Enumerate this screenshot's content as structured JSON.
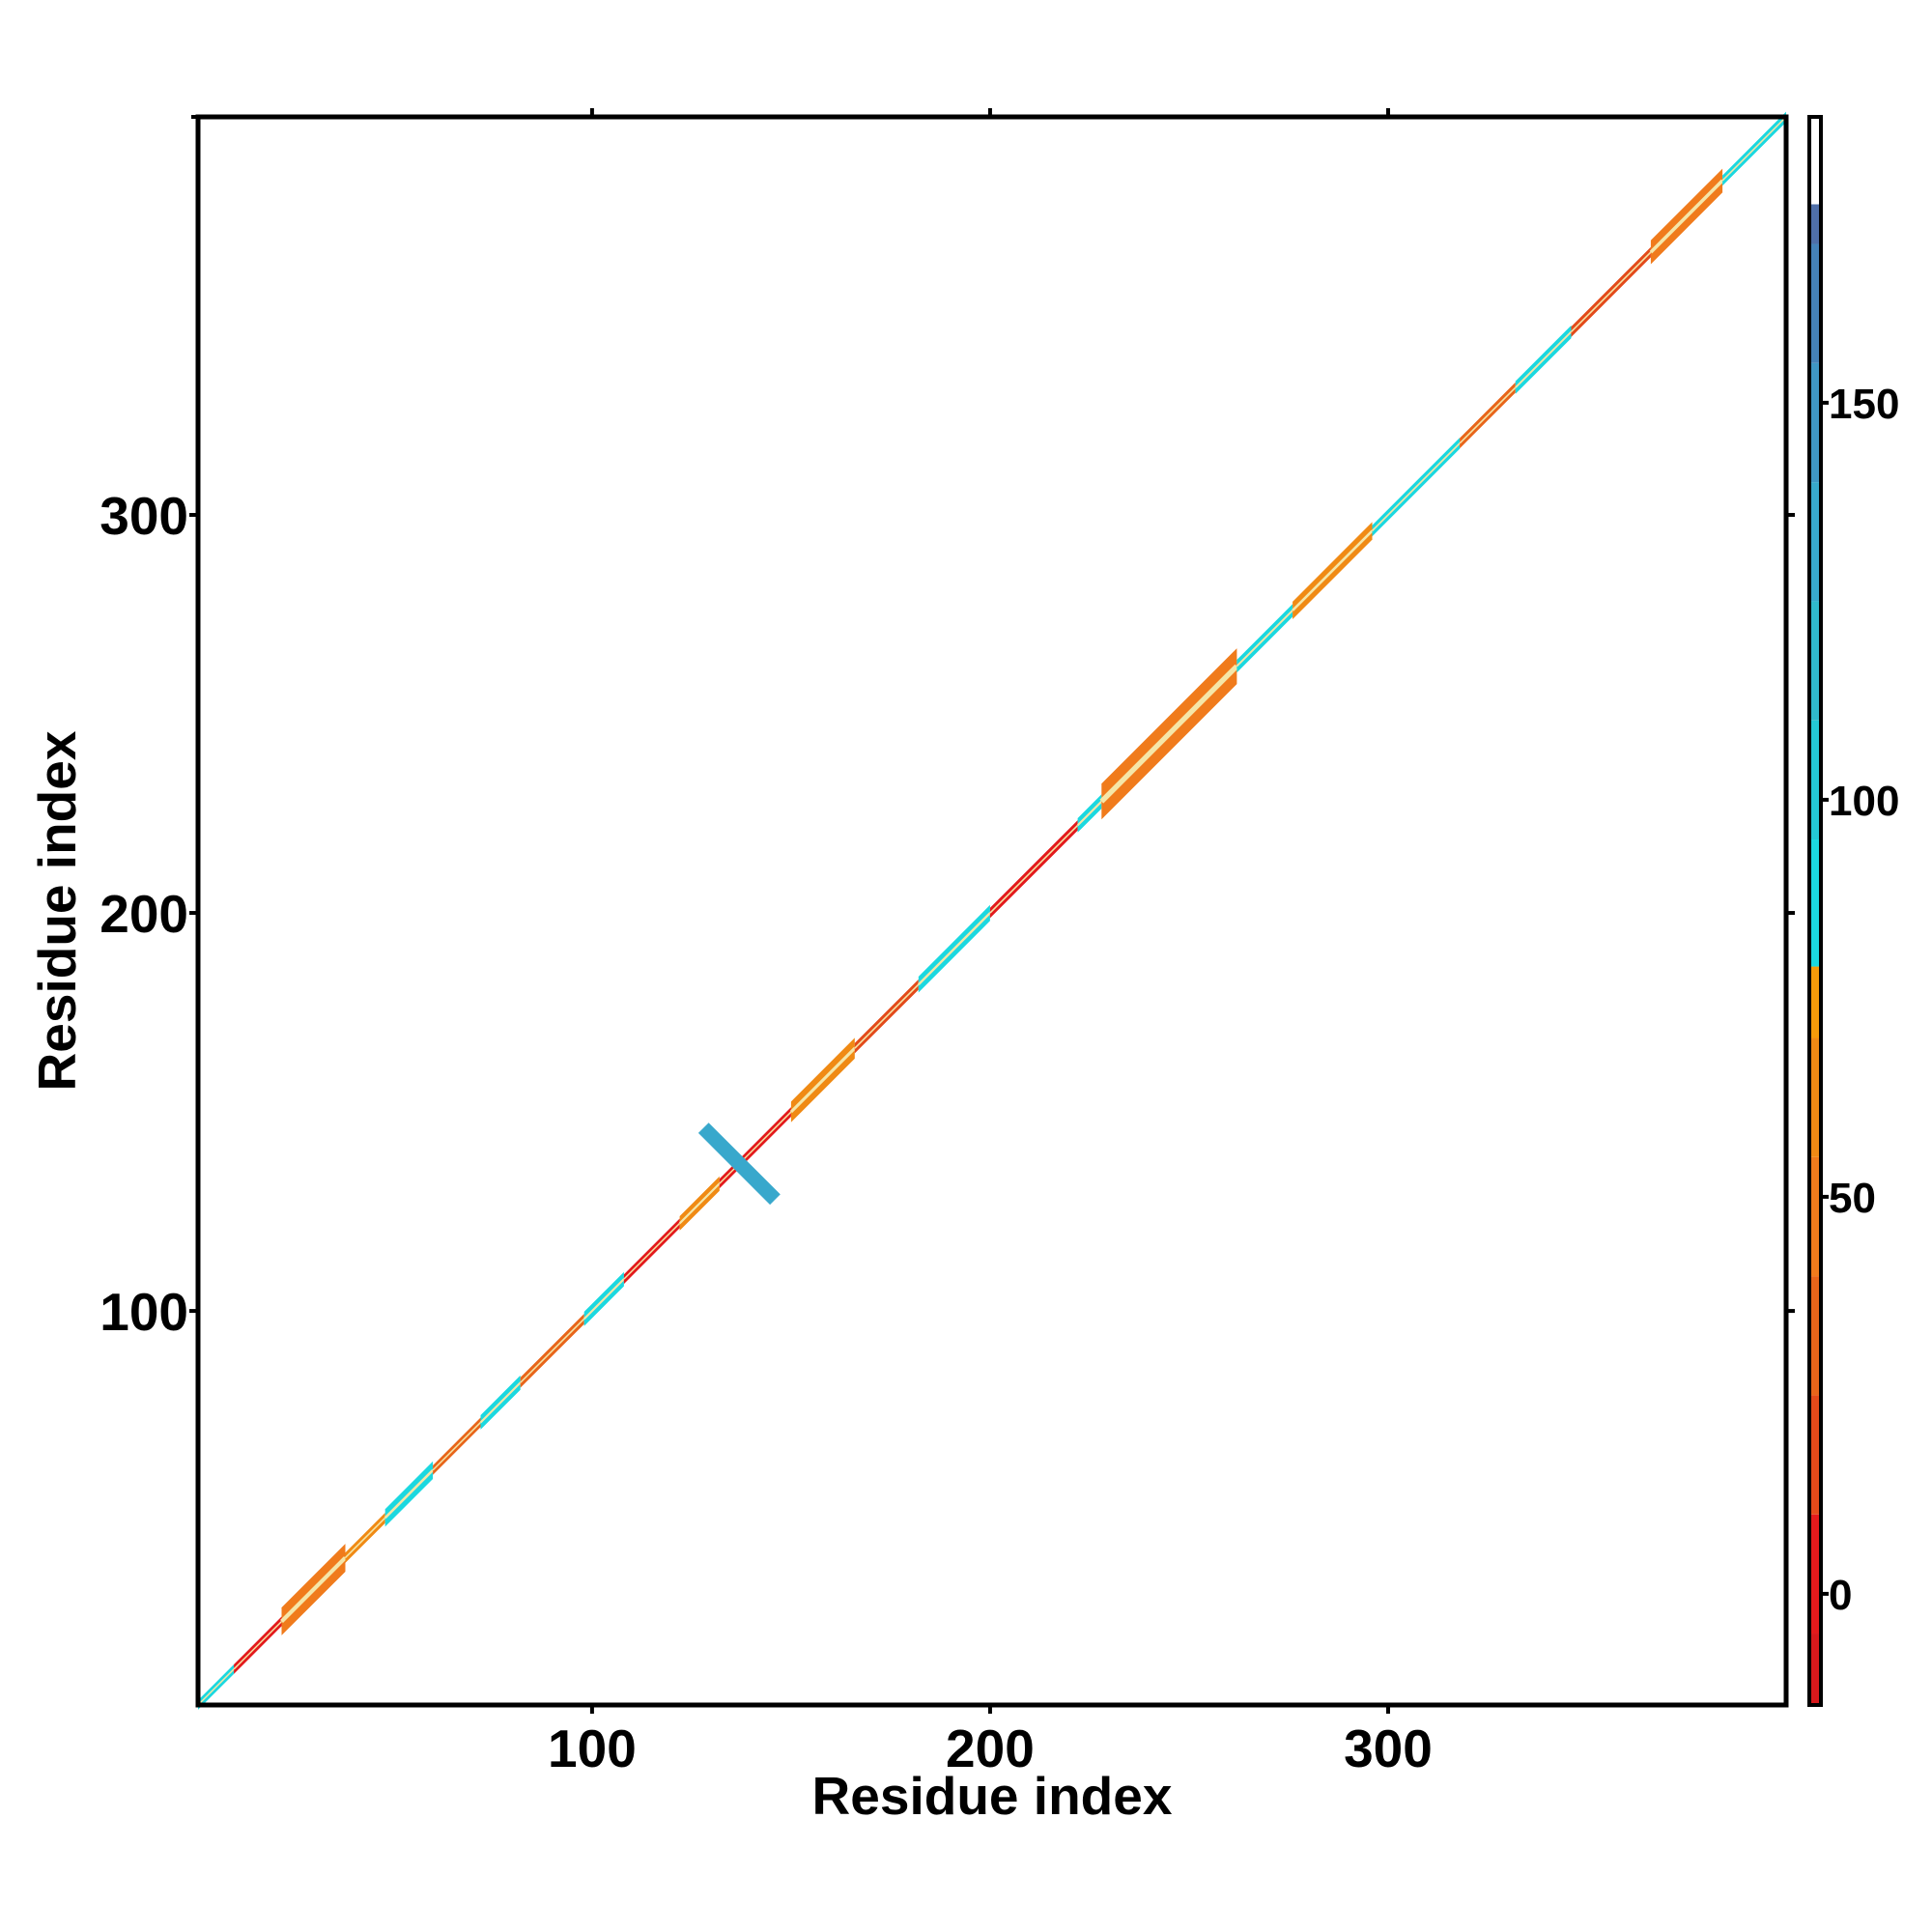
{
  "chart_data": {
    "type": "heatmap",
    "title": "",
    "xlabel": "Residue index",
    "ylabel": "Residue index",
    "xlim": [
      1,
      400
    ],
    "ylim": [
      1,
      400
    ],
    "x_ticks": [
      100,
      200,
      300
    ],
    "y_ticks": [
      100,
      200,
      300
    ],
    "grid": false,
    "legend": "none",
    "colorbar": {
      "placement": "right",
      "range": [
        -14,
        186
      ],
      "ticks": [
        0,
        50,
        100,
        150
      ],
      "levels": [
        {
          "from": -14,
          "to": -5,
          "color": "#d7191c"
        },
        {
          "from": -5,
          "to": 10,
          "color": "#e31a1c"
        },
        {
          "from": 10,
          "to": 25,
          "color": "#e34a1a"
        },
        {
          "from": 25,
          "to": 40,
          "color": "#e8651a"
        },
        {
          "from": 40,
          "to": 55,
          "color": "#f07b1c"
        },
        {
          "from": 55,
          "to": 70,
          "color": "#f08a14"
        },
        {
          "from": 70,
          "to": 79,
          "color": "#f59b0a"
        },
        {
          "from": 79,
          "to": 95,
          "color": "#1bd8e0"
        },
        {
          "from": 95,
          "to": 110,
          "color": "#24c8d6"
        },
        {
          "from": 110,
          "to": 125,
          "color": "#30b9cc"
        },
        {
          "from": 125,
          "to": 140,
          "color": "#38a8cc"
        },
        {
          "from": 140,
          "to": 155,
          "color": "#3f96c4"
        },
        {
          "from": 155,
          "to": 170,
          "color": "#4582b8"
        },
        {
          "from": 170,
          "to": 175,
          "color": "#4f6fa8"
        },
        {
          "from": 175,
          "to": 186,
          "color": "#ffffff"
        }
      ]
    },
    "diagonal_segments": [
      {
        "start": 1,
        "end": 10,
        "half_width": 1.2,
        "value": 90
      },
      {
        "start": 10,
        "end": 22,
        "half_width": 1.2,
        "value": 5
      },
      {
        "start": 22,
        "end": 38,
        "half_width": 3.5,
        "value": 45
      },
      {
        "start": 38,
        "end": 48,
        "half_width": 1.3,
        "value": 60
      },
      {
        "start": 48,
        "end": 60,
        "half_width": 2.2,
        "value": 95
      },
      {
        "start": 60,
        "end": 72,
        "half_width": 1.2,
        "value": 40
      },
      {
        "start": 72,
        "end": 82,
        "half_width": 1.8,
        "value": 95
      },
      {
        "start": 82,
        "end": 98,
        "half_width": 1.3,
        "value": 30
      },
      {
        "start": 98,
        "end": 108,
        "half_width": 1.8,
        "value": 90
      },
      {
        "start": 108,
        "end": 122,
        "half_width": 1.2,
        "value": 5
      },
      {
        "start": 122,
        "end": 132,
        "half_width": 1.8,
        "value": 70
      },
      {
        "start": 132,
        "end": 150,
        "half_width": 1.2,
        "value": 10
      },
      {
        "start": 150,
        "end": 166,
        "half_width": 2.6,
        "value": 60
      },
      {
        "start": 166,
        "end": 182,
        "half_width": 1.3,
        "value": 15
      },
      {
        "start": 182,
        "end": 200,
        "half_width": 2.0,
        "value": 90
      },
      {
        "start": 200,
        "end": 222,
        "half_width": 1.3,
        "value": 10
      },
      {
        "start": 222,
        "end": 228,
        "half_width": 1.8,
        "value": 95
      },
      {
        "start": 228,
        "end": 262,
        "half_width": 4.5,
        "value": 55
      },
      {
        "start": 262,
        "end": 276,
        "half_width": 1.6,
        "value": 90
      },
      {
        "start": 276,
        "end": 296,
        "half_width": 2.2,
        "value": 60
      },
      {
        "start": 296,
        "end": 318,
        "half_width": 1.4,
        "value": 95
      },
      {
        "start": 318,
        "end": 332,
        "half_width": 1.3,
        "value": 30
      },
      {
        "start": 332,
        "end": 346,
        "half_width": 1.6,
        "value": 90
      },
      {
        "start": 346,
        "end": 366,
        "half_width": 1.3,
        "value": 25
      },
      {
        "start": 366,
        "end": 384,
        "half_width": 3.0,
        "value": 55
      },
      {
        "start": 384,
        "end": 400,
        "half_width": 1.3,
        "value": 90
      }
    ],
    "off_diagonal_features": [
      {
        "type": "anti_diagonal",
        "center": [
          137,
          137
        ],
        "half_length": 9,
        "half_width": 1.3,
        "value": 140
      }
    ]
  }
}
